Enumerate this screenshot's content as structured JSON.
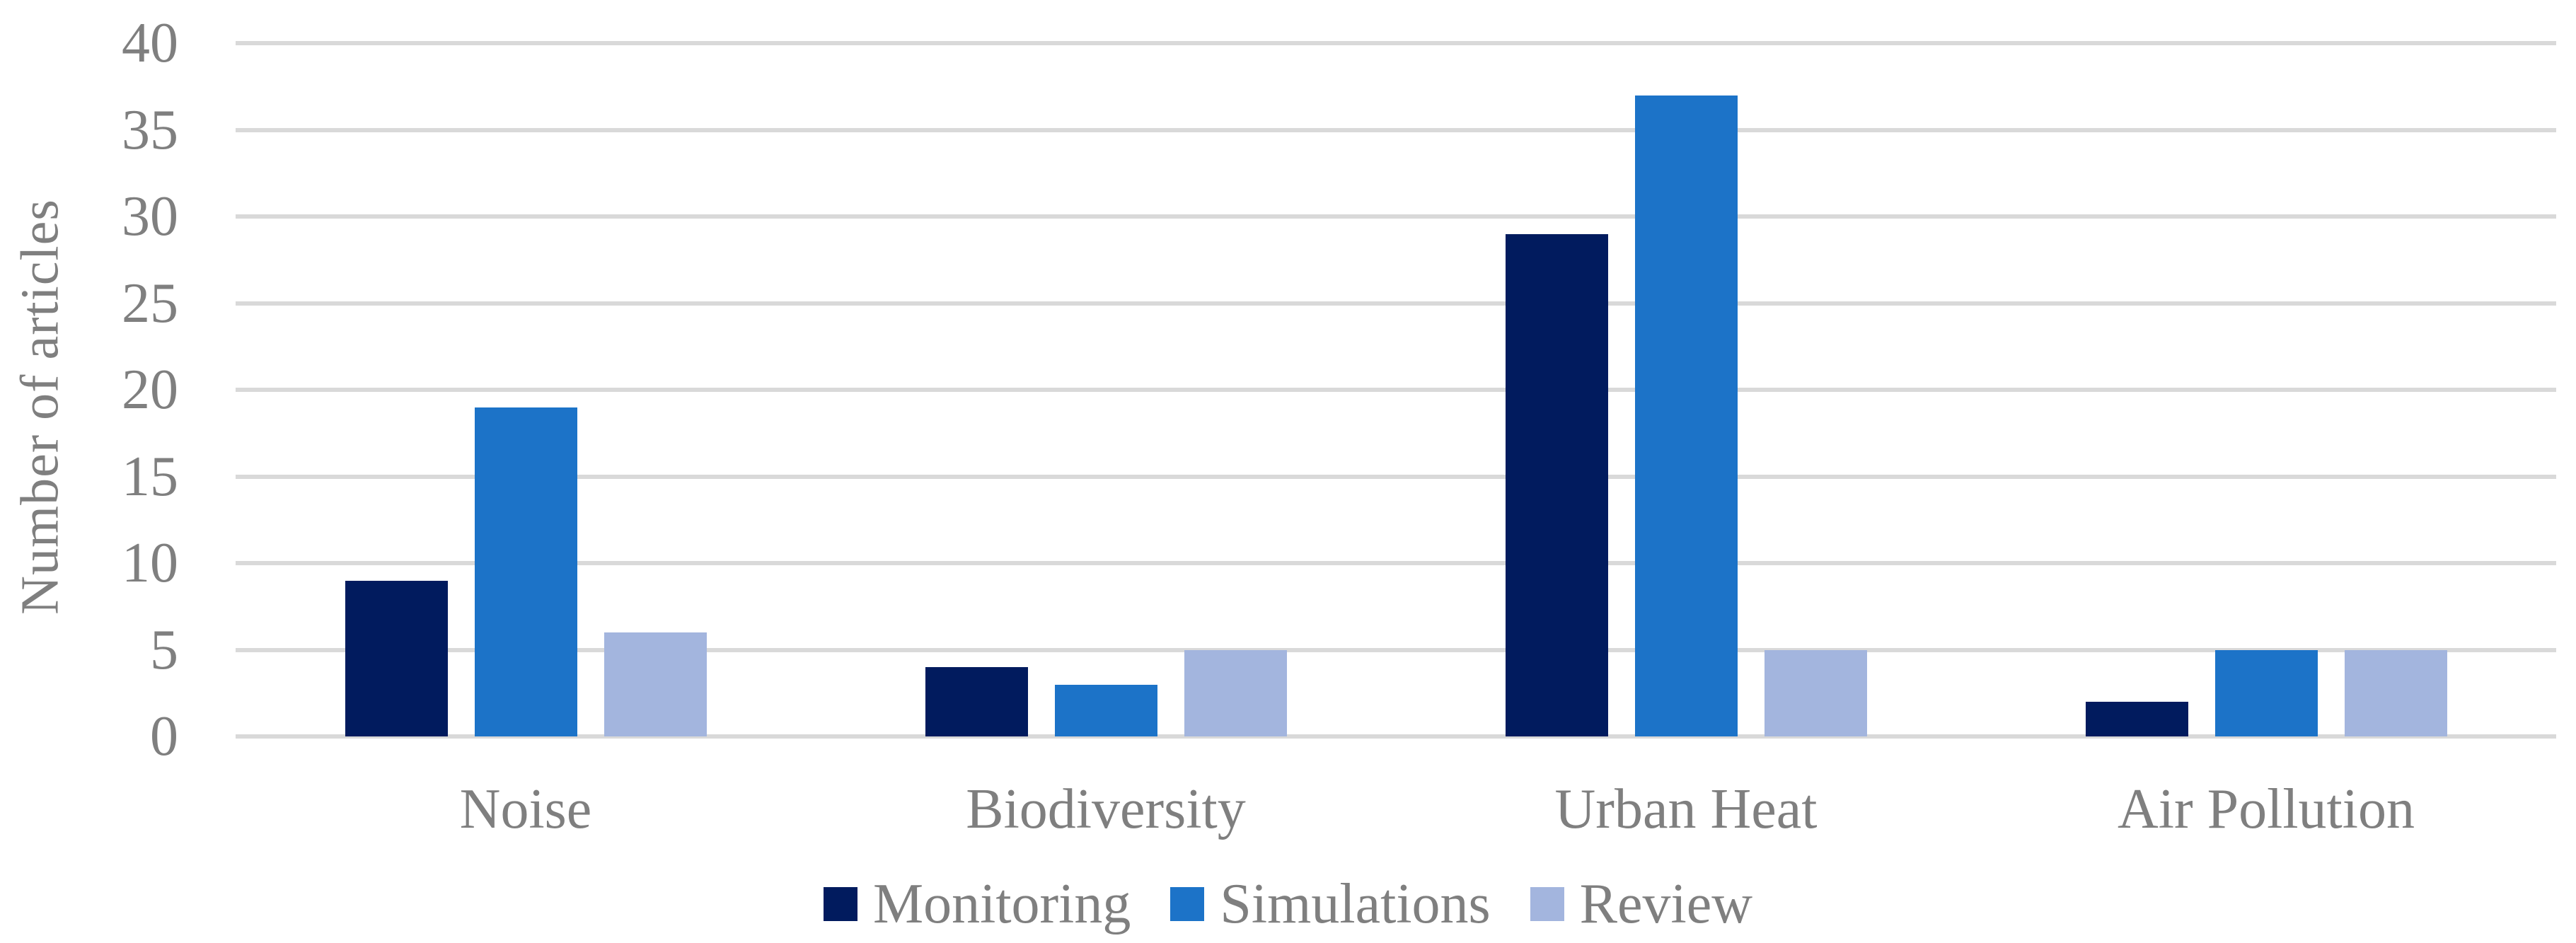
{
  "chart_data": {
    "type": "bar",
    "title": "",
    "categories": [
      "Noise",
      "Biodiversity",
      "Urban Heat",
      "Air Pollution"
    ],
    "series": [
      {
        "name": "Monitoring",
        "color": "#011b5e",
        "values": [
          9,
          4,
          29,
          2
        ]
      },
      {
        "name": "Simulations",
        "color": "#1c73c8",
        "values": [
          19,
          3,
          37,
          5
        ]
      },
      {
        "name": "Review",
        "color": "#a3b5de",
        "values": [
          6,
          5,
          5,
          5
        ]
      }
    ],
    "xlabel": "",
    "ylabel": "Number of articles",
    "ylim": [
      0,
      40
    ],
    "yticks": [
      0,
      5,
      10,
      15,
      20,
      25,
      30,
      35,
      40
    ],
    "grid": "horizontal",
    "legend_position": "bottom",
    "gridline_color": "#d9d9d9",
    "text_color": "#7f7f7f",
    "background_color": "#ffffff"
  }
}
